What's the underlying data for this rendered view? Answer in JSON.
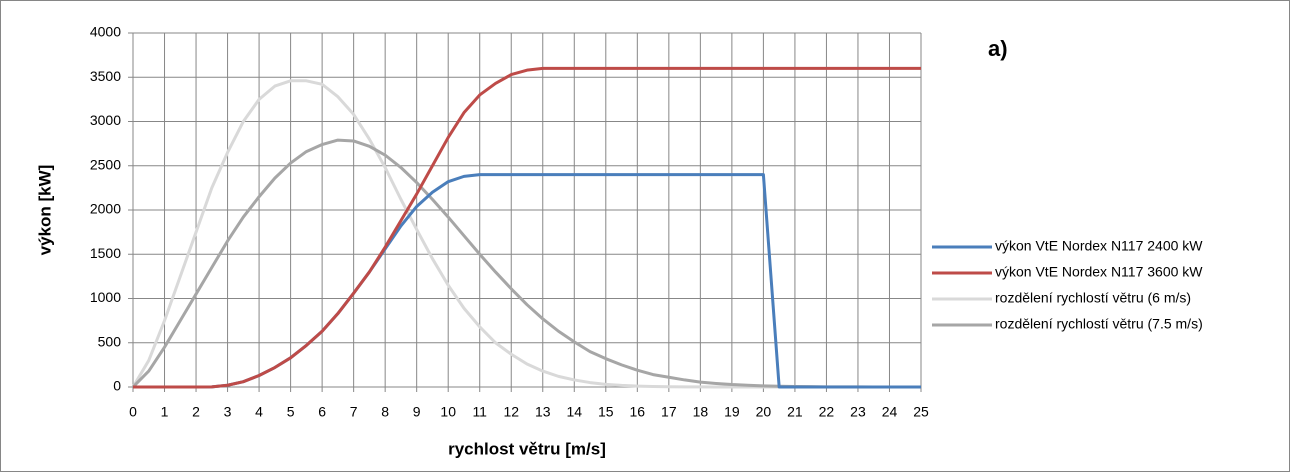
{
  "chart_data": {
    "type": "line",
    "annotation": "a)",
    "xlabel": "rychlost větru [m/s]",
    "ylabel": "výkon [kW]",
    "x": [
      0,
      0.5,
      1,
      1.5,
      2,
      2.5,
      3,
      3.5,
      4,
      4.5,
      5,
      5.5,
      6,
      6.5,
      7,
      7.5,
      8,
      8.5,
      9,
      9.5,
      10,
      10.5,
      11,
      11.5,
      12,
      12.5,
      13,
      13.5,
      14,
      14.5,
      15,
      15.5,
      16,
      16.5,
      17,
      17.5,
      18,
      18.5,
      19,
      19.5,
      20,
      20.5,
      21,
      21.5,
      22,
      22.5,
      23,
      23.5,
      24,
      24.5,
      25
    ],
    "series": [
      {
        "name": "výkon VtE Nordex N117 2400 kW",
        "color": "#4a7ebb",
        "values": [
          0,
          0,
          0,
          0,
          0,
          2,
          20,
          60,
          130,
          220,
          330,
          470,
          630,
          830,
          1060,
          1300,
          1560,
          1820,
          2040,
          2200,
          2320,
          2380,
          2400,
          2400,
          2400,
          2400,
          2400,
          2400,
          2400,
          2400,
          2400,
          2400,
          2400,
          2400,
          2400,
          2400,
          2400,
          2400,
          2400,
          2400,
          2400,
          0,
          0,
          0,
          0,
          0,
          0,
          0,
          0,
          0,
          0
        ]
      },
      {
        "name": "výkon VtE Nordex N117 3600 kW",
        "color": "#be4b48",
        "values": [
          0,
          0,
          0,
          0,
          0,
          2,
          20,
          60,
          130,
          220,
          330,
          470,
          630,
          830,
          1060,
          1300,
          1580,
          1880,
          2180,
          2500,
          2820,
          3100,
          3300,
          3430,
          3530,
          3580,
          3600,
          3600,
          3600,
          3600,
          3600,
          3600,
          3600,
          3600,
          3600,
          3600,
          3600,
          3600,
          3600,
          3600,
          3600,
          3600,
          3600,
          3600,
          3600,
          3600,
          3600,
          3600,
          3600,
          3600,
          3600
        ]
      },
      {
        "name": "rozdělení rychlostí větru (6 m/s)",
        "color": "#d9d9d9",
        "values": [
          0,
          300,
          750,
          1250,
          1750,
          2250,
          2650,
          3000,
          3250,
          3400,
          3460,
          3460,
          3420,
          3280,
          3080,
          2800,
          2480,
          2120,
          1780,
          1450,
          1150,
          890,
          680,
          500,
          370,
          260,
          180,
          120,
          80,
          50,
          30,
          18,
          10,
          5,
          3,
          2,
          1,
          0,
          0,
          0,
          0,
          0,
          0,
          0,
          0,
          0,
          0,
          0,
          0,
          0,
          0
        ]
      },
      {
        "name": "rozdělení rychlostí větru (7.5 m/s)",
        "color": "#a6a6a6",
        "values": [
          0,
          180,
          450,
          750,
          1050,
          1350,
          1650,
          1920,
          2150,
          2360,
          2530,
          2660,
          2740,
          2790,
          2780,
          2720,
          2620,
          2480,
          2310,
          2120,
          1920,
          1710,
          1500,
          1300,
          1110,
          930,
          770,
          630,
          510,
          400,
          320,
          250,
          190,
          140,
          110,
          80,
          55,
          40,
          28,
          20,
          13,
          9,
          6,
          4,
          2,
          1,
          1,
          0,
          0,
          0,
          0
        ]
      }
    ],
    "xlim": [
      0,
      25
    ],
    "xticks": [
      0,
      1,
      2,
      3,
      4,
      5,
      6,
      7,
      8,
      9,
      10,
      11,
      12,
      13,
      14,
      15,
      16,
      17,
      18,
      19,
      20,
      21,
      22,
      23,
      24,
      25
    ],
    "ylim": [
      0,
      4000
    ],
    "yticks": [
      0,
      500,
      1000,
      1500,
      2000,
      2500,
      3000,
      3500,
      4000
    ],
    "grid": true,
    "legend": "right"
  }
}
